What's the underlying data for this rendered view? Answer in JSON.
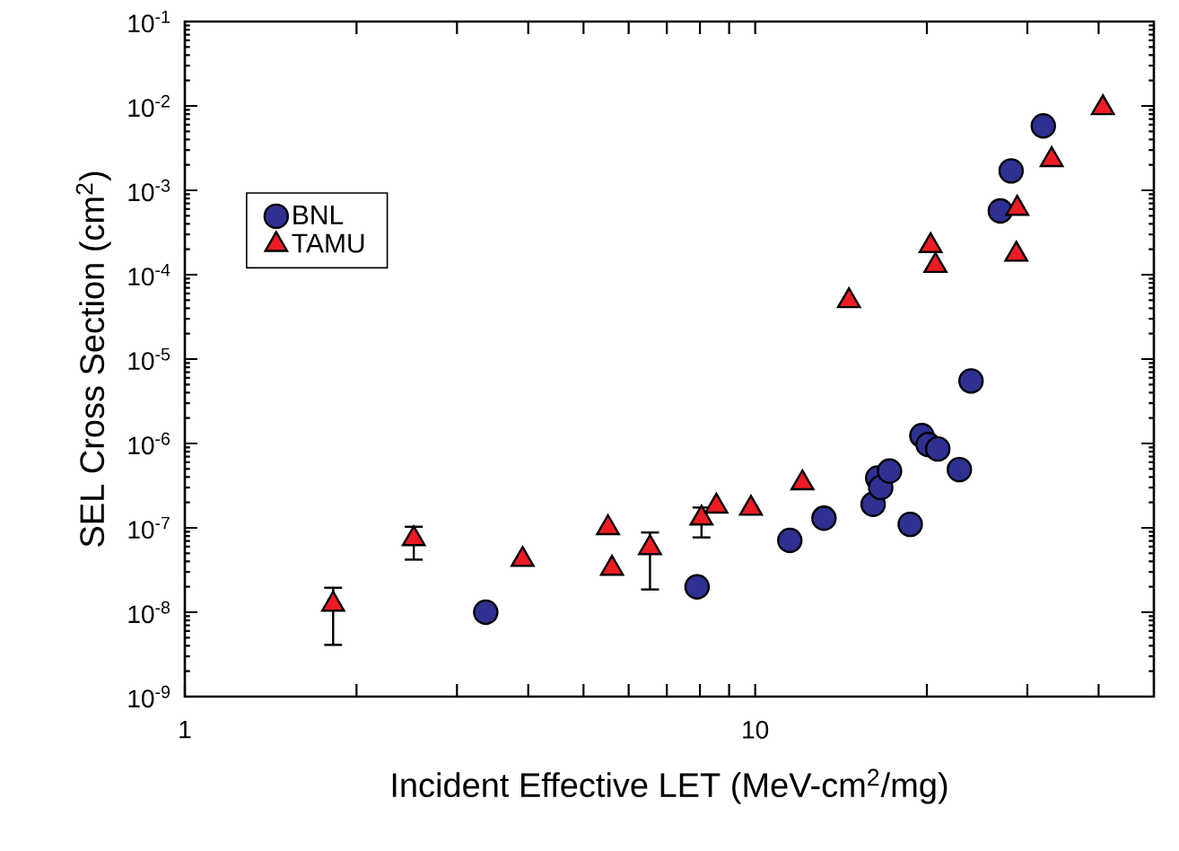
{
  "chart_data": {
    "type": "scatter",
    "xlabel": "Incident Effective LET (MeV-cm$^{2}$/mg)",
    "ylabel": "SEL Cross Section (cm$^{2}$)",
    "log": "xy",
    "xlim": [
      1,
      50
    ],
    "ylim": [
      1e-09,
      0.1
    ],
    "xticks": [
      1,
      {
        "value": 2,
        "label": null
      },
      {
        "value": 3,
        "label": null
      },
      {
        "value": 4,
        "label": null
      },
      {
        "value": 5,
        "label": null
      },
      {
        "value": 6,
        "label": null
      },
      {
        "value": 7,
        "label": null
      },
      {
        "value": 8,
        "label": null
      },
      {
        "value": 9,
        "label": null
      },
      10,
      {
        "value": 20,
        "label": null
      },
      {
        "value": 30,
        "label": null
      },
      {
        "value": 40,
        "label": null
      }
    ],
    "yticks": [
      {
        "value": 1e-09,
        "label": "10$^{-9}$"
      },
      {
        "value": 1e-08,
        "label": "10$^{-8}$"
      },
      {
        "value": 1e-07,
        "label": "10$^{-7}$"
      },
      {
        "value": 1e-06,
        "label": "10$^{-6}$"
      },
      {
        "value": 1e-05,
        "label": "10$^{-5}$"
      },
      {
        "value": 0.0001,
        "label": "10$^{-4}$"
      },
      {
        "value": 0.001,
        "label": "10$^{-3}$"
      },
      {
        "value": 0.01,
        "label": "10$^{-2}$"
      },
      {
        "value": 0.1,
        "label": "10$^{-1}$"
      }
    ],
    "grid": false,
    "legend": "top left",
    "series": [
      {
        "name": "BNL",
        "color": "#2e3192",
        "marker": "circle",
        "x": [
          3.37,
          7.91,
          11.5,
          13.2,
          16.1,
          16.4,
          16.6,
          17.2,
          18.7,
          19.6,
          20.1,
          20.9,
          22.8,
          23.9,
          26.9,
          28.1,
          32.0
        ],
        "values": [
          1e-08,
          2e-08,
          7.1e-08,
          1.3e-07,
          1.9e-07,
          3.9e-07,
          3e-07,
          4.7e-07,
          1.1e-07,
          1.24e-06,
          9.7e-07,
          8.6e-07,
          4.9e-07,
          5.5e-06,
          0.00057,
          0.0017,
          0.0058
        ]
      },
      {
        "name": "TAMU",
        "color": "#ed1c24",
        "marker": "triangle",
        "x": [
          1.82,
          2.52,
          3.91,
          5.52,
          5.61,
          6.54,
          8.05,
          8.55,
          9.83,
          12.1,
          14.6,
          20.3,
          20.7,
          28.8,
          28.7,
          33.1,
          40.7
        ],
        "values": [
          1.24e-08,
          7.4e-08,
          4.2e-08,
          1e-07,
          3.3e-08,
          5.8e-08,
          1.3e-07,
          1.8e-07,
          1.7e-07,
          3.4e-07,
          4.9e-05,
          0.00022,
          0.000128,
          0.00061,
          0.000174,
          0.0023,
          0.0095
        ],
        "errors": [
          [
            4.1e-09,
            1.95e-08
          ],
          [
            4.2e-08,
            1.03e-07
          ],
          null,
          null,
          null,
          [
            1.86e-08,
            8.8e-08
          ],
          [
            7.7e-08,
            1.74e-07
          ],
          null,
          null,
          null,
          null,
          null,
          null,
          null,
          null,
          null,
          null
        ]
      }
    ]
  }
}
